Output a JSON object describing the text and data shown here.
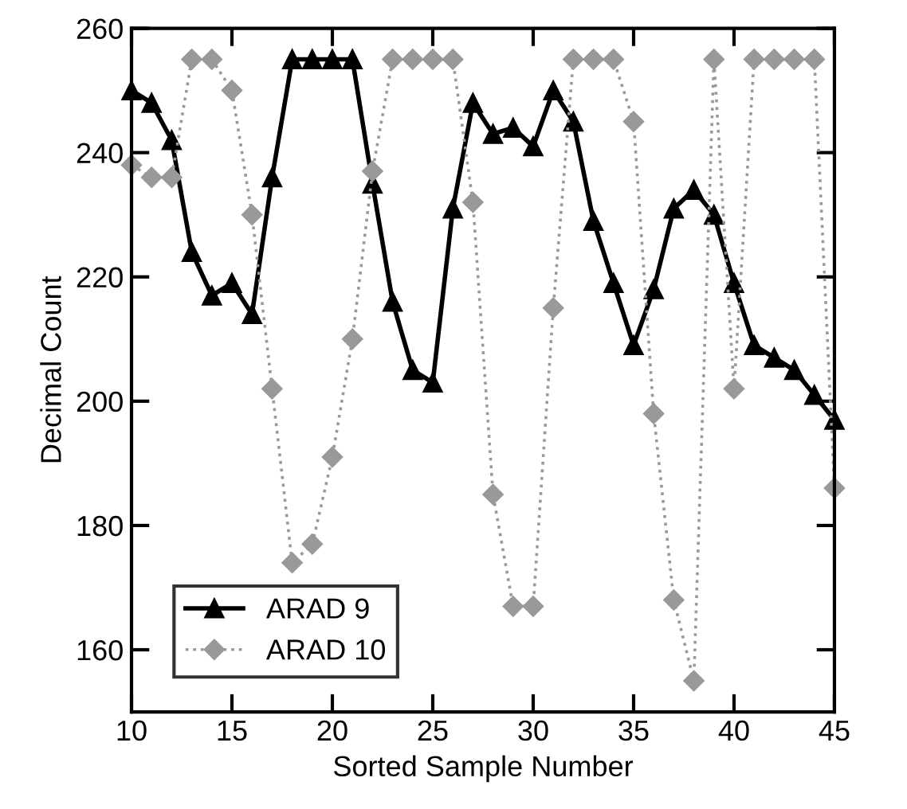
{
  "chart_data": {
    "type": "line",
    "xlabel": "Sorted Sample Number",
    "ylabel": "Decimal Count",
    "x": [
      10,
      11,
      12,
      13,
      14,
      15,
      16,
      17,
      18,
      19,
      20,
      21,
      22,
      23,
      24,
      25,
      26,
      27,
      28,
      29,
      30,
      31,
      32,
      33,
      34,
      35,
      36,
      37,
      38,
      39,
      40,
      41,
      42,
      43,
      44,
      45
    ],
    "series": [
      {
        "name": "ARAD 9",
        "color": "#000000",
        "marker": "triangle",
        "line_style": "solid",
        "values": [
          250,
          248,
          242,
          224,
          217,
          219,
          214,
          236,
          255,
          255,
          255,
          255,
          235,
          216,
          205,
          203,
          231,
          248,
          243,
          244,
          241,
          250,
          245,
          229,
          219,
          209,
          218,
          231,
          234,
          230,
          219,
          209,
          207,
          205,
          201,
          197
        ]
      },
      {
        "name": "ARAD 10",
        "color": "#999999",
        "marker": "diamond",
        "line_style": "dotted",
        "values": [
          238,
          236,
          236,
          255,
          255,
          250,
          230,
          202,
          174,
          177,
          191,
          210,
          237,
          255,
          255,
          255,
          255,
          232,
          185,
          167,
          167,
          215,
          255,
          255,
          255,
          245,
          198,
          168,
          155,
          255,
          202,
          255,
          255,
          255,
          255,
          186
        ]
      }
    ],
    "xlim": [
      10,
      45
    ],
    "ylim": [
      150,
      260
    ],
    "xticks": [
      10,
      15,
      20,
      25,
      30,
      35,
      40,
      45
    ],
    "yticks": [
      160,
      180,
      200,
      220,
      240,
      260
    ],
    "grid": false,
    "legend": "bottom left"
  }
}
